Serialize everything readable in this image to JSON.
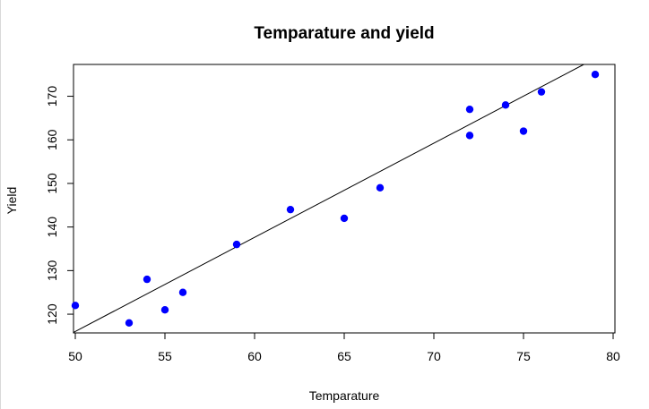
{
  "chart_data": {
    "type": "scatter",
    "title": "Temparature and yield",
    "xlabel": "Temparature",
    "ylabel": "Yield",
    "xlim": [
      49.9,
      80.1
    ],
    "ylim": [
      115.7,
      177.3
    ],
    "x_ticks": [
      "50",
      "55",
      "60",
      "65",
      "70",
      "75",
      "80"
    ],
    "y_ticks": [
      "120",
      "130",
      "140",
      "150",
      "160",
      "170"
    ],
    "point_color": "#0000ff",
    "x": [
      50,
      53,
      54,
      55,
      56,
      59,
      62,
      65,
      67,
      72,
      72,
      74,
      75,
      76,
      79
    ],
    "y": [
      122,
      118,
      128,
      121,
      125,
      136,
      144,
      142,
      149,
      161,
      167,
      168,
      162,
      171,
      175
    ],
    "regression_line": {
      "color": "#000000",
      "intercept": 8.03,
      "slope": 2.16
    },
    "grid": false,
    "legend": "none"
  }
}
